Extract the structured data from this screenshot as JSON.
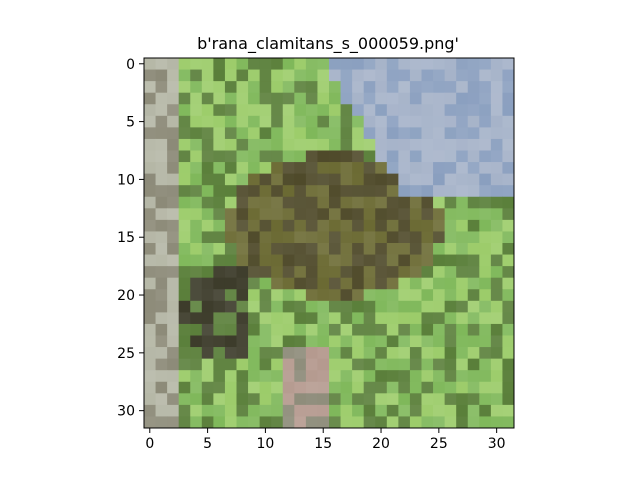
{
  "figure": {
    "title": "b'rana_clamitans_s_000059.png'",
    "image_size": [
      32,
      32
    ],
    "x_ticks": [
      "0",
      "5",
      "10",
      "15",
      "20",
      "25",
      "30"
    ],
    "y_ticks": [
      "0",
      "5",
      "10",
      "15",
      "20",
      "25",
      "30"
    ],
    "palette": {
      "sky": "#8a9fbf",
      "sky_light": "#a6b3c9",
      "leaf_light": "#9ccc6a",
      "leaf": "#7fb85a",
      "leaf_dark": "#5a7f3a",
      "frog": "#6b6a33",
      "frog_dark": "#4f4a2a",
      "brown": "#5b4a2d",
      "stone": "#8c8a78",
      "stone_light": "#b5b7a6",
      "shadow": "#3c3b2a",
      "pink": "#b59a8f"
    }
  }
}
